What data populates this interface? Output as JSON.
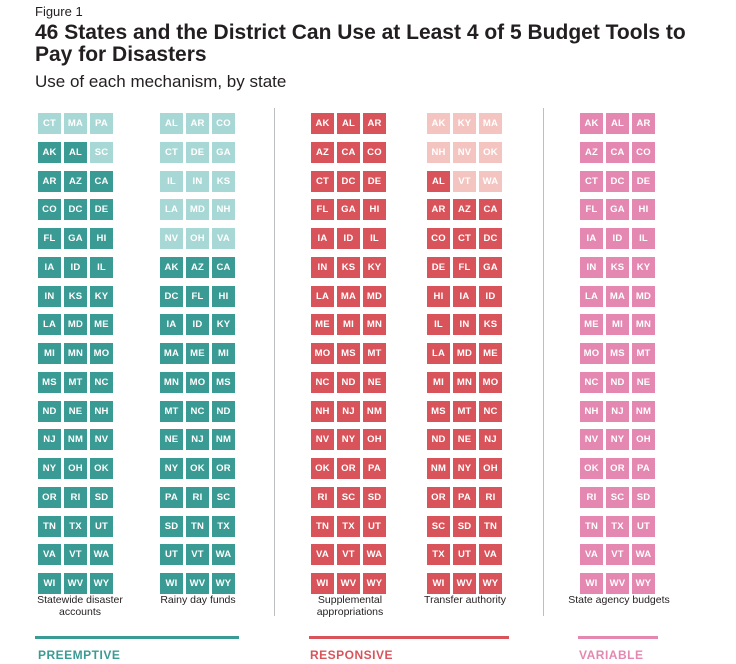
{
  "figure_label": "Figure 1",
  "title": "46 States and the District Can Use at Least 4 of 5 Budget Tools to Pay for Disasters",
  "subtitle": "Use of each mechanism, by state",
  "colors": {
    "preemptive": "#3a9b94",
    "preemptive_light": "#a8d8d5",
    "responsive": "#d9545a",
    "responsive_light": "#f4c5c0",
    "variable": "#e487b1"
  },
  "chart_data": {
    "type": "table",
    "groups": [
      {
        "label": "PREEMPTIVE",
        "color": "#3a9b94"
      },
      {
        "label": "RESPONSIVE",
        "color": "#d9545a"
      },
      {
        "label": "VARIABLE",
        "color": "#e487b1"
      }
    ],
    "columns": [
      {
        "label": "Statewide disaster accounts",
        "group": "PREEMPTIVE",
        "rows": [
          [
            "CT",
            "MA",
            "PA"
          ],
          [
            "AK",
            "AL",
            "SC"
          ],
          [
            "AR",
            "AZ",
            "CA"
          ],
          [
            "CO",
            "DC",
            "DE"
          ],
          [
            "FL",
            "GA",
            "HI"
          ],
          [
            "IA",
            "ID",
            "IL"
          ],
          [
            "IN",
            "KS",
            "KY"
          ],
          [
            "LA",
            "MD",
            "ME"
          ],
          [
            "MI",
            "MN",
            "MO"
          ],
          [
            "MS",
            "MT",
            "NC"
          ],
          [
            "ND",
            "NE",
            "NH"
          ],
          [
            "NJ",
            "NM",
            "NV"
          ],
          [
            "NY",
            "OH",
            "OK"
          ],
          [
            "OR",
            "RI",
            "SD"
          ],
          [
            "TN",
            "TX",
            "UT"
          ],
          [
            "VA",
            "VT",
            "WA"
          ],
          [
            "WI",
            "WV",
            "WY"
          ]
        ],
        "not_used": [
          "CT",
          "MA",
          "PA",
          "SC"
        ]
      },
      {
        "label": "Rainy day funds",
        "group": "PREEMPTIVE",
        "rows": [
          [
            "AL",
            "AR",
            "CO"
          ],
          [
            "CT",
            "DE",
            "GA"
          ],
          [
            "IL",
            "IN",
            "KS"
          ],
          [
            "LA",
            "MD",
            "NH"
          ],
          [
            "NV",
            "OH",
            "VA"
          ],
          [
            "AK",
            "AZ",
            "CA"
          ],
          [
            "DC",
            "FL",
            "HI"
          ],
          [
            "IA",
            "ID",
            "KY"
          ],
          [
            "MA",
            "ME",
            "MI"
          ],
          [
            "MN",
            "MO",
            "MS"
          ],
          [
            "MT",
            "NC",
            "ND"
          ],
          [
            "NE",
            "NJ",
            "NM"
          ],
          [
            "NY",
            "OK",
            "OR"
          ],
          [
            "PA",
            "RI",
            "SC"
          ],
          [
            "SD",
            "TN",
            "TX"
          ],
          [
            "UT",
            "VT",
            "WA"
          ],
          [
            "WI",
            "WV",
            "WY"
          ]
        ],
        "not_used": [
          "AL",
          "AR",
          "CO",
          "CT",
          "DE",
          "GA",
          "IL",
          "IN",
          "KS",
          "LA",
          "MD",
          "NH",
          "NV",
          "OH",
          "VA"
        ]
      },
      {
        "label": "Supplemental appropriations",
        "group": "RESPONSIVE",
        "rows": [
          [
            "AK",
            "AL",
            "AR"
          ],
          [
            "AZ",
            "CA",
            "CO"
          ],
          [
            "CT",
            "DC",
            "DE"
          ],
          [
            "FL",
            "GA",
            "HI"
          ],
          [
            "IA",
            "ID",
            "IL"
          ],
          [
            "IN",
            "KS",
            "KY"
          ],
          [
            "LA",
            "MA",
            "MD"
          ],
          [
            "ME",
            "MI",
            "MN"
          ],
          [
            "MO",
            "MS",
            "MT"
          ],
          [
            "NC",
            "ND",
            "NE"
          ],
          [
            "NH",
            "NJ",
            "NM"
          ],
          [
            "NV",
            "NY",
            "OH"
          ],
          [
            "OK",
            "OR",
            "PA"
          ],
          [
            "RI",
            "SC",
            "SD"
          ],
          [
            "TN",
            "TX",
            "UT"
          ],
          [
            "VA",
            "VT",
            "WA"
          ],
          [
            "WI",
            "WV",
            "WY"
          ]
        ],
        "not_used": []
      },
      {
        "label": "Transfer authority",
        "group": "RESPONSIVE",
        "rows": [
          [
            "AK",
            "KY",
            "MA"
          ],
          [
            "NH",
            "NV",
            "OK"
          ],
          [
            "AL",
            "VT",
            "WA"
          ],
          [
            "AR",
            "AZ",
            "CA"
          ],
          [
            "CO",
            "CT",
            "DC"
          ],
          [
            "DE",
            "FL",
            "GA"
          ],
          [
            "HI",
            "IA",
            "ID"
          ],
          [
            "IL",
            "IN",
            "KS"
          ],
          [
            "LA",
            "MD",
            "ME"
          ],
          [
            "MI",
            "MN",
            "MO"
          ],
          [
            "MS",
            "MT",
            "NC"
          ],
          [
            "ND",
            "NE",
            "NJ"
          ],
          [
            "NM",
            "NY",
            "OH"
          ],
          [
            "OR",
            "PA",
            "RI"
          ],
          [
            "SC",
            "SD",
            "TN"
          ],
          [
            "TX",
            "UT",
            "VA"
          ],
          [
            "WI",
            "WV",
            "WY"
          ]
        ],
        "not_used": [
          "AK",
          "KY",
          "MA",
          "NH",
          "NV",
          "OK",
          "VT",
          "WA"
        ]
      },
      {
        "label": "State agency budgets",
        "group": "VARIABLE",
        "rows": [
          [
            "AK",
            "AL",
            "AR"
          ],
          [
            "AZ",
            "CA",
            "CO"
          ],
          [
            "CT",
            "DC",
            "DE"
          ],
          [
            "FL",
            "GA",
            "HI"
          ],
          [
            "IA",
            "ID",
            "IL"
          ],
          [
            "IN",
            "KS",
            "KY"
          ],
          [
            "LA",
            "MA",
            "MD"
          ],
          [
            "ME",
            "MI",
            "MN"
          ],
          [
            "MO",
            "MS",
            "MT"
          ],
          [
            "NC",
            "ND",
            "NE"
          ],
          [
            "NH",
            "NJ",
            "NM"
          ],
          [
            "NV",
            "NY",
            "OH"
          ],
          [
            "OK",
            "OR",
            "PA"
          ],
          [
            "RI",
            "SC",
            "SD"
          ],
          [
            "TN",
            "TX",
            "UT"
          ],
          [
            "VA",
            "VT",
            "WA"
          ],
          [
            "WI",
            "WV",
            "WY"
          ]
        ],
        "not_used": []
      }
    ]
  }
}
